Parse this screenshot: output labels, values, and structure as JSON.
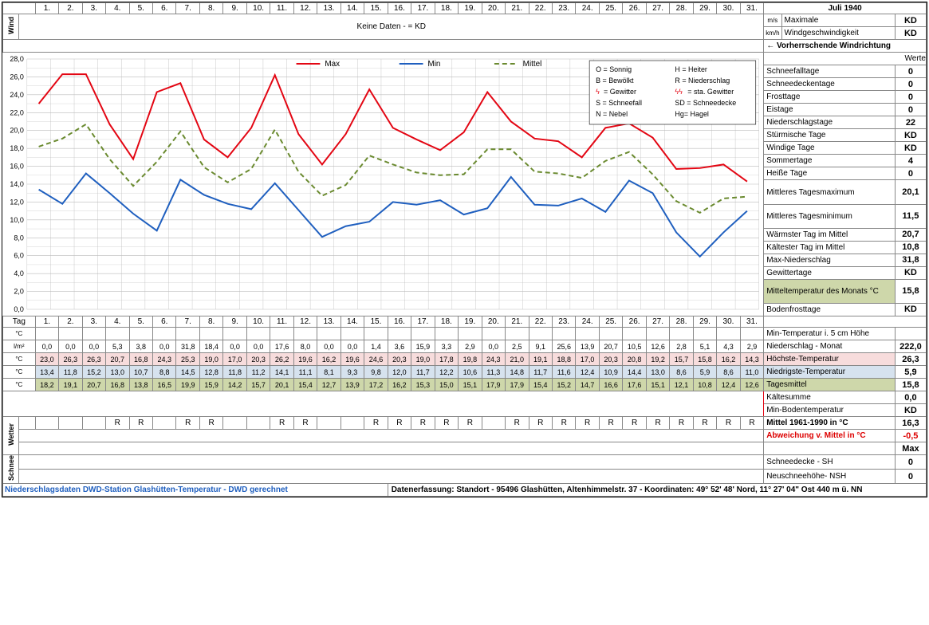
{
  "title": "Juli 1940",
  "wind": {
    "no_data_label": "Keine Daten -  = KD",
    "row1_label": "Maximale",
    "row1_val": "KD",
    "row1_unit": "m/s",
    "row2_label": "Windgeschwindigkeit",
    "row2_val": "KD",
    "row2_unit": "km/h",
    "row3_label": "← Vorherrschende Windrichtung"
  },
  "chart": {
    "type": "line",
    "xlabel_days": [
      "1.",
      "2.",
      "3.",
      "4.",
      "5.",
      "6.",
      "7.",
      "8.",
      "9.",
      "10.",
      "11.",
      "12.",
      "13.",
      "14.",
      "15.",
      "16.",
      "17.",
      "18.",
      "19.",
      "20.",
      "21.",
      "22.",
      "23.",
      "24.",
      "25.",
      "26.",
      "27.",
      "28.",
      "29.",
      "30.",
      "31."
    ],
    "ylim": [
      0,
      28
    ],
    "ytick_step": 2,
    "background": "#ffffff",
    "grid_color": "#bbbbbb",
    "series": {
      "max": {
        "label": "Max",
        "color": "#e30613",
        "dash": "none",
        "width": 2,
        "values": [
          23.0,
          26.3,
          26.3,
          20.7,
          16.8,
          24.3,
          25.3,
          19.0,
          17.0,
          20.3,
          26.2,
          19.6,
          16.2,
          19.6,
          24.6,
          20.3,
          19.0,
          17.8,
          19.8,
          24.3,
          21.0,
          19.1,
          18.8,
          17.0,
          20.3,
          20.8,
          19.2,
          15.7,
          15.8,
          16.2,
          14.3
        ]
      },
      "min": {
        "label": "Min",
        "color": "#1f5fbf",
        "dash": "none",
        "width": 2,
        "values": [
          13.4,
          11.8,
          15.2,
          13.0,
          10.7,
          8.8,
          14.5,
          12.8,
          11.8,
          11.2,
          14.1,
          11.1,
          8.1,
          9.3,
          9.8,
          12.0,
          11.7,
          12.2,
          10.6,
          11.3,
          14.8,
          11.7,
          11.6,
          12.4,
          10.9,
          14.4,
          13.0,
          8.6,
          5.9,
          8.6,
          11.0
        ]
      },
      "mittel": {
        "label": "Mittel",
        "color": "#6a8a2f",
        "dash": "6,4",
        "width": 2,
        "values": [
          18.2,
          19.1,
          20.7,
          16.8,
          13.8,
          16.5,
          19.9,
          15.9,
          14.2,
          15.7,
          20.1,
          15.4,
          12.7,
          13.9,
          17.2,
          16.2,
          15.3,
          15.0,
          15.1,
          17.9,
          17.9,
          15.4,
          15.2,
          14.7,
          16.6,
          17.6,
          15.1,
          12.1,
          10.8,
          12.4,
          12.6
        ]
      }
    },
    "legend_box": {
      "lines": [
        [
          "O = Sonnig",
          "H = Heiter"
        ],
        [
          "B = Bewölkt",
          "R = Niederschlag"
        ],
        [
          "= Gewitter",
          "= sta. Gewitter"
        ],
        [
          "S = Schneefall",
          "SD = Schneedecke"
        ],
        [
          "N = Nebel",
          "Hg= Hagel"
        ]
      ]
    }
  },
  "side_stats": [
    {
      "label": "Werte",
      "val": ""
    },
    {
      "label": "Schneefalltage",
      "val": "0"
    },
    {
      "label": "Schneedeckentage",
      "val": "0"
    },
    {
      "label": "Frosttage",
      "val": "0"
    },
    {
      "label": "Eistage",
      "val": "0"
    },
    {
      "label": "Niederschlagstage",
      "val": "22"
    },
    {
      "label": "Stürmische Tage",
      "val": "KD"
    },
    {
      "label": "Windige Tage",
      "val": "KD"
    },
    {
      "label": "Sommertage",
      "val": "4"
    },
    {
      "label": "Heiße Tage",
      "val": "0"
    },
    {
      "label": "Mittleres Tagesmaximum",
      "val": "20,1",
      "double": true
    },
    {
      "label": "Mittleres Tagesminimum",
      "val": "11,5",
      "double": true
    },
    {
      "label": "Wärmster Tag im Mittel",
      "val": "20,7"
    },
    {
      "label": "Kältester Tag im Mittel",
      "val": "10,8"
    },
    {
      "label": "Max-Niederschlag",
      "val": "31,8"
    },
    {
      "label": "Gewittertage",
      "val": "KD"
    },
    {
      "label": "Mitteltemperatur des Monats °C",
      "val": "15,8",
      "double": true,
      "hl": "hl-green"
    },
    {
      "label": "Bodenfrosttage",
      "val": "KD"
    }
  ],
  "tag_label": "Tag",
  "data_rows": {
    "min5cm": {
      "unit": "°C",
      "label": "Min-Temperatur i. 5 cm Höhe",
      "vals": [
        "",
        "",
        "",
        "",
        "",
        "",
        "",
        "",
        "",
        "",
        "",
        "",
        "",
        "",
        "",
        "",
        "",
        "",
        "",
        "",
        "",
        "",
        "",
        "",
        "",
        "",
        "",
        "",
        "",
        "",
        ""
      ],
      "side": ""
    },
    "nieder": {
      "unit": "l/m²",
      "label": "Niederschlag - Monat",
      "side": "222,0",
      "vals": [
        "0,0",
        "0,0",
        "0,0",
        "5,3",
        "3,8",
        "0,0",
        "31,8",
        "18,4",
        "0,0",
        "0,0",
        "17,6",
        "8,0",
        "0,0",
        "0,0",
        "1,4",
        "3,6",
        "15,9",
        "3,3",
        "2,9",
        "0,0",
        "2,5",
        "9,1",
        "25,6",
        "13,9",
        "20,7",
        "10,5",
        "12,6",
        "2,8",
        "5,1",
        "4,3",
        "2,9"
      ]
    },
    "hoechste": {
      "unit": "°C",
      "label": "Höchste-Temperatur",
      "side": "26,3",
      "hl": "hl-pink",
      "vals": [
        "23,0",
        "26,3",
        "26,3",
        "20,7",
        "16,8",
        "24,3",
        "25,3",
        "19,0",
        "17,0",
        "20,3",
        "26,2",
        "19,6",
        "16,2",
        "19,6",
        "24,6",
        "20,3",
        "19,0",
        "17,8",
        "19,8",
        "24,3",
        "21,0",
        "19,1",
        "18,8",
        "17,0",
        "20,3",
        "20,8",
        "19,2",
        "15,7",
        "15,8",
        "16,2",
        "14,3"
      ]
    },
    "niedrig": {
      "unit": "°C",
      "label": "Niedrigste-Temperatur",
      "side": "5,9",
      "hl": "hl-blue",
      "vals": [
        "13,4",
        "11,8",
        "15,2",
        "13,0",
        "10,7",
        "8,8",
        "14,5",
        "12,8",
        "11,8",
        "11,2",
        "14,1",
        "11,1",
        "8,1",
        "9,3",
        "9,8",
        "12,0",
        "11,7",
        "12,2",
        "10,6",
        "11,3",
        "14,8",
        "11,7",
        "11,6",
        "12,4",
        "10,9",
        "14,4",
        "13,0",
        "8,6",
        "5,9",
        "8,6",
        "11,0"
      ]
    },
    "tagesmittel": {
      "unit": "°C",
      "label": "Tagesmittel",
      "side": "15,8",
      "hl": "hl-green",
      "vals": [
        "18,2",
        "19,1",
        "20,7",
        "16,8",
        "13,8",
        "16,5",
        "19,9",
        "15,9",
        "14,2",
        "15,7",
        "20,1",
        "15,4",
        "12,7",
        "13,9",
        "17,2",
        "16,2",
        "15,3",
        "15,0",
        "15,1",
        "17,9",
        "17,9",
        "15,4",
        "15,2",
        "14,7",
        "16,6",
        "17,6",
        "15,1",
        "12,1",
        "10,8",
        "12,4",
        "12,6"
      ]
    }
  },
  "weather_rows": {
    "label": "Wetter",
    "r_marks": [
      "",
      "",
      "",
      "R",
      "R",
      "",
      "R",
      "R",
      "",
      "",
      "R",
      "R",
      "",
      "",
      "R",
      "R",
      "R",
      "R",
      "R",
      "",
      "R",
      "R",
      "R",
      "R",
      "R",
      "R",
      "R",
      "R",
      "R",
      "R",
      "R"
    ]
  },
  "side_lower": [
    {
      "label": "Kältesumme",
      "val": "0,0"
    },
    {
      "label": "Min-Bodentemperatur",
      "val": "KD"
    },
    {
      "label": "Mittel 1961-1990 in °C",
      "val": "16,3",
      "bold": true
    },
    {
      "label": "Abweichung v. Mittel in °C",
      "val": "-0,5",
      "red": true
    },
    {
      "label": "",
      "val": "Max"
    },
    {
      "label": "Schneedecke -   SH",
      "val": "0"
    },
    {
      "label": "Neuschneehöhe- NSH",
      "val": "0"
    }
  ],
  "schnee_label": "Schnee",
  "footer": {
    "left": "Niederschlagsdaten DWD-Station Glashütten-Temperatur -  DWD gerechnet",
    "right": "Datenerfassung: Standort - 95496 Glashütten, Altenhimmelstr. 37 - Koordinaten: 49° 52' 48' Nord,  11° 27' 04\" Ost   440 m ü. NN"
  }
}
